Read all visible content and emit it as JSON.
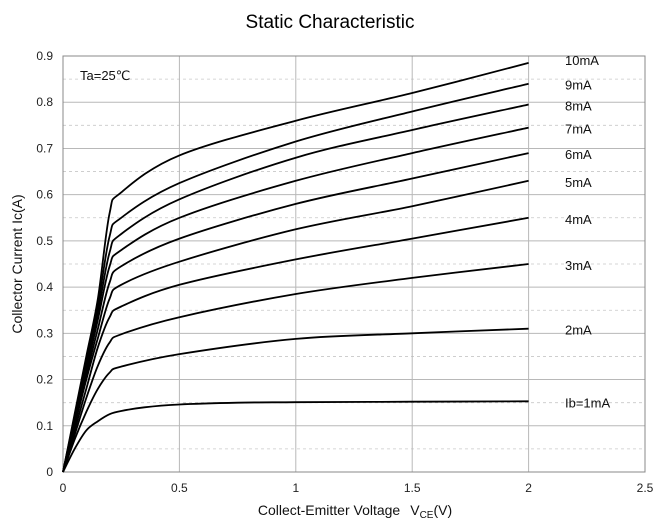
{
  "chart_data": {
    "type": "line",
    "title": "Static Characteristic",
    "xlabel": "Collect-Emitter Voltage",
    "xlabel_symbol": "V",
    "xlabel_subscript": "CE",
    "xlabel_unit": "(V)",
    "ylabel": "Collector  Current   Ic(A)",
    "annotation": "Ta=25℃",
    "xlim": [
      0,
      2.5
    ],
    "ylim": [
      0,
      0.9
    ],
    "x_ticks": [
      "0",
      "0.5",
      "1",
      "1.5",
      "2",
      "2.5"
    ],
    "y_ticks": [
      "0",
      "0.1",
      "0.2",
      "0.3",
      "0.4",
      "0.5",
      "0.6",
      "0.7",
      "0.8",
      "0.9"
    ],
    "grid": true,
    "series": [
      {
        "name": "Ib=1mA",
        "x": [
          0,
          0.05,
          0.1,
          0.15,
          0.2,
          0.25,
          0.35,
          0.5,
          0.75,
          1.0,
          1.5,
          2.0
        ],
        "y": [
          0,
          0.05,
          0.09,
          0.11,
          0.125,
          0.132,
          0.14,
          0.146,
          0.15,
          0.151,
          0.152,
          0.153
        ]
      },
      {
        "name": "2mA",
        "x": [
          0,
          0.05,
          0.1,
          0.15,
          0.2,
          0.25,
          0.5,
          1.0,
          1.5,
          2.0
        ],
        "y": [
          0,
          0.07,
          0.13,
          0.18,
          0.215,
          0.228,
          0.255,
          0.288,
          0.3,
          0.31
        ]
      },
      {
        "name": "3mA",
        "x": [
          0,
          0.05,
          0.1,
          0.15,
          0.2,
          0.25,
          0.5,
          1.0,
          1.5,
          2.0
        ],
        "y": [
          0,
          0.08,
          0.16,
          0.23,
          0.28,
          0.298,
          0.335,
          0.385,
          0.42,
          0.45
        ]
      },
      {
        "name": "4mA",
        "x": [
          0,
          0.05,
          0.1,
          0.15,
          0.2,
          0.25,
          0.5,
          1.0,
          1.5,
          2.0
        ],
        "y": [
          0,
          0.09,
          0.18,
          0.27,
          0.335,
          0.358,
          0.405,
          0.46,
          0.505,
          0.55
        ]
      },
      {
        "name": "5mA",
        "x": [
          0,
          0.05,
          0.1,
          0.15,
          0.2,
          0.25,
          0.5,
          1.0,
          1.5,
          2.0
        ],
        "y": [
          0,
          0.1,
          0.2,
          0.29,
          0.375,
          0.405,
          0.455,
          0.525,
          0.575,
          0.63
        ]
      },
      {
        "name": "6mA",
        "x": [
          0,
          0.05,
          0.1,
          0.15,
          0.2,
          0.25,
          0.5,
          1.0,
          1.5,
          2.0
        ],
        "y": [
          0,
          0.105,
          0.21,
          0.31,
          0.41,
          0.445,
          0.505,
          0.58,
          0.635,
          0.69
        ]
      },
      {
        "name": "7mA",
        "x": [
          0,
          0.05,
          0.1,
          0.15,
          0.2,
          0.25,
          0.5,
          1.0,
          1.5,
          2.0
        ],
        "y": [
          0,
          0.11,
          0.22,
          0.33,
          0.445,
          0.48,
          0.55,
          0.63,
          0.69,
          0.745
        ]
      },
      {
        "name": "8mA",
        "x": [
          0,
          0.05,
          0.1,
          0.15,
          0.2,
          0.25,
          0.5,
          1.0,
          1.5,
          2.0
        ],
        "y": [
          0,
          0.115,
          0.23,
          0.345,
          0.475,
          0.515,
          0.59,
          0.68,
          0.74,
          0.795
        ]
      },
      {
        "name": "9mA",
        "x": [
          0,
          0.05,
          0.1,
          0.15,
          0.2,
          0.25,
          0.5,
          1.0,
          1.5,
          2.0
        ],
        "y": [
          0,
          0.12,
          0.24,
          0.36,
          0.51,
          0.55,
          0.625,
          0.715,
          0.78,
          0.84
        ]
      },
      {
        "name": "10mA",
        "x": [
          0,
          0.05,
          0.1,
          0.15,
          0.2,
          0.25,
          0.5,
          1.0,
          1.5,
          2.0
        ],
        "y": [
          0,
          0.125,
          0.25,
          0.375,
          0.56,
          0.605,
          0.685,
          0.76,
          0.82,
          0.885
        ]
      }
    ],
    "colors": {
      "curve": "#000000",
      "grid": "#b8b8b8"
    }
  }
}
